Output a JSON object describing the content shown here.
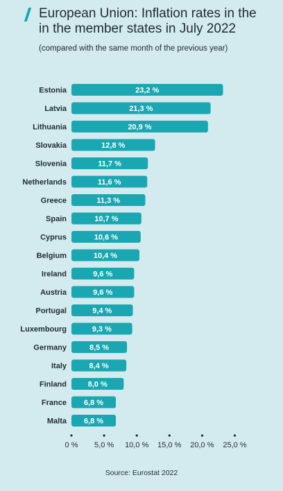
{
  "title_line1": "European Union: Inflation rates in the",
  "title_line2": "in the member states in July 2022",
  "subtitle": "(compared with the same month of the previous year)",
  "source": "Source: Eurostat 2022",
  "colors": {
    "bar": "#1aa7b1",
    "background": "#d3ebee",
    "text": "#1d2a33"
  },
  "chart_data": {
    "type": "bar",
    "orientation": "horizontal",
    "categories": [
      "Estonia",
      "Latvia",
      "Lithuania",
      "Slovakia",
      "Slovenia",
      "Netherlands",
      "Greece",
      "Spain",
      "Cyprus",
      "Belgium",
      "Ireland",
      "Austria",
      "Portugal",
      "Luxembourg",
      "Germany",
      "Italy",
      "Finland",
      "France",
      "Malta"
    ],
    "values": [
      23.2,
      21.3,
      20.9,
      12.8,
      11.7,
      11.6,
      11.3,
      10.7,
      10.6,
      10.4,
      9.6,
      9.6,
      9.4,
      9.3,
      8.5,
      8.4,
      8.0,
      6.8,
      6.8
    ],
    "value_labels": [
      "23,2 %",
      "21,3 %",
      "20,9 %",
      "12,8 %",
      "11,7 %",
      "11,6 %",
      "11,3 %",
      "10,7 %",
      "10,6 %",
      "10,4 %",
      "9,6 %",
      "9,6 %",
      "9,4 %",
      "9,3 %",
      "8,5 %",
      "8,4 %",
      "8,0 %",
      "6,8 %",
      "6,8 %"
    ],
    "x_ticks": [
      0,
      5,
      10,
      15,
      20,
      25
    ],
    "x_tick_labels": [
      "0 %",
      "5,0 %",
      "10,0 %",
      "15,0 %",
      "20,0 %",
      "25,0 %"
    ],
    "xlim": [
      0,
      25
    ],
    "grid": false
  }
}
